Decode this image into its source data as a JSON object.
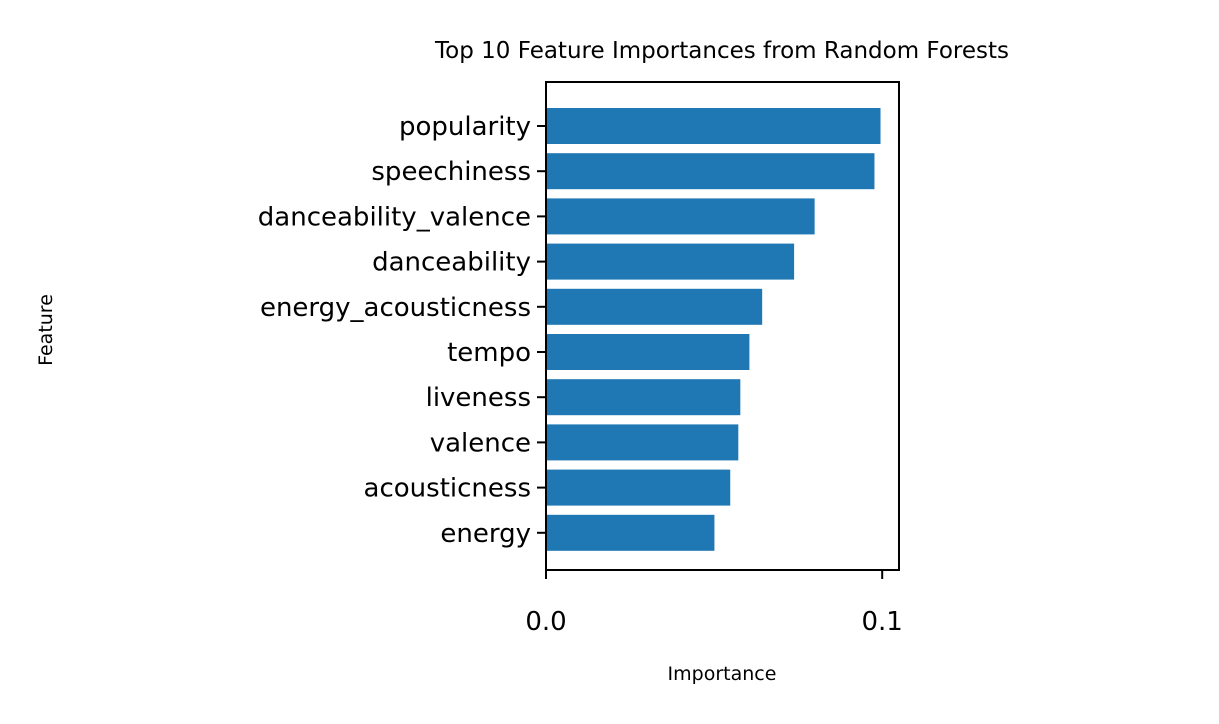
{
  "chart_data": {
    "type": "bar",
    "orientation": "horizontal",
    "title": "Top 10 Feature Importances from Random Forests",
    "xlabel": "Importance",
    "ylabel": "Feature",
    "categories": [
      "popularity",
      "speechiness",
      "danceability_valence",
      "danceability",
      "energy_acousticness",
      "tempo",
      "liveness",
      "valence",
      "acousticness",
      "energy"
    ],
    "values": [
      0.0995,
      0.0977,
      0.0799,
      0.0738,
      0.0643,
      0.0605,
      0.0578,
      0.0572,
      0.0548,
      0.0501
    ],
    "xlim": [
      0,
      0.105
    ],
    "xticks": [
      0.0,
      0.1
    ],
    "xtick_labels": [
      "0.0",
      "0.1"
    ],
    "grid": false,
    "bar_color": "#1f77b4"
  }
}
